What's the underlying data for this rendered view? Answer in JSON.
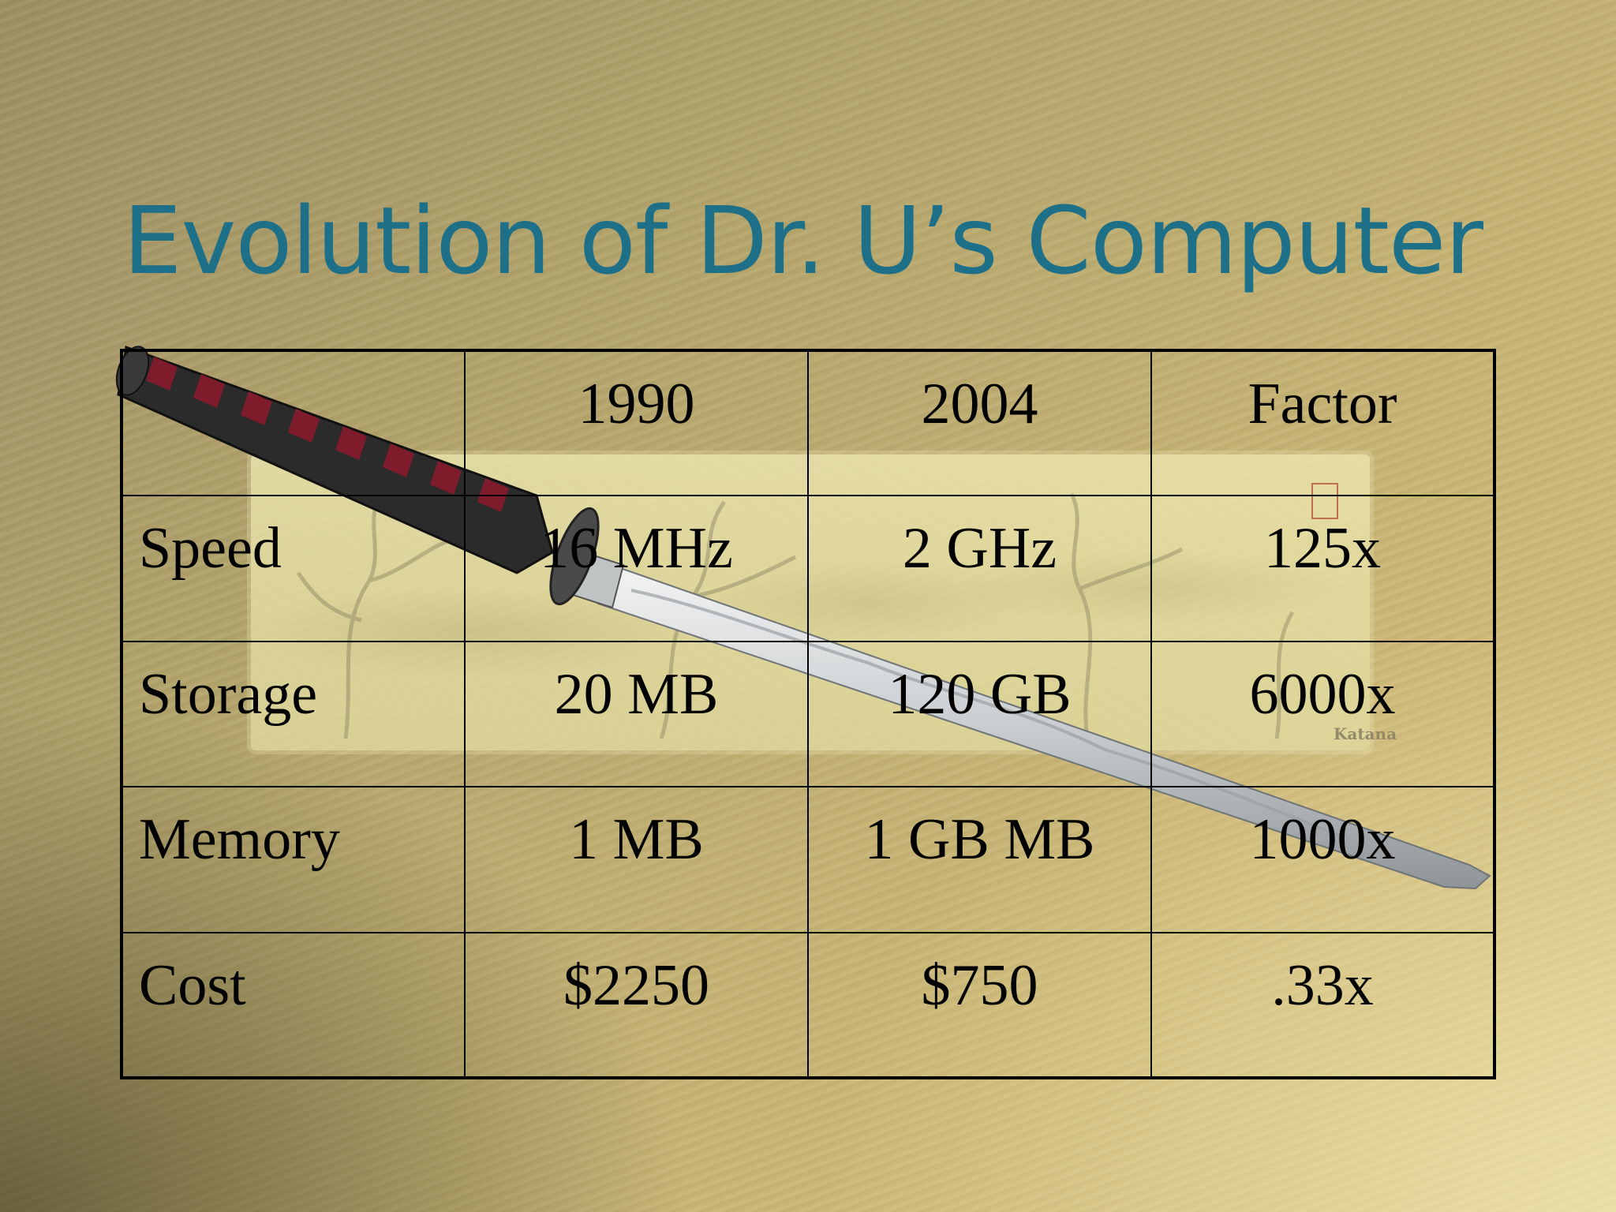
{
  "slide": {
    "title": "Evolution of Dr. U’s Computer",
    "title_color": "#1e6f88",
    "background_image": {
      "subject": "katana sword over parchment scroll",
      "scroll_label": "Katana"
    }
  },
  "table": {
    "headers": [
      "",
      "1990",
      "2004",
      "Factor"
    ],
    "rows": [
      [
        "Speed",
        "16 MHz",
        "2 GHz",
        "125x"
      ],
      [
        "Storage",
        "20 MB",
        "120 GB",
        "6000x"
      ],
      [
        "Memory",
        "1 MB",
        "1 GB MB",
        "1000x"
      ],
      [
        "Cost",
        "$2250",
        "$750",
        ".33x"
      ]
    ]
  }
}
